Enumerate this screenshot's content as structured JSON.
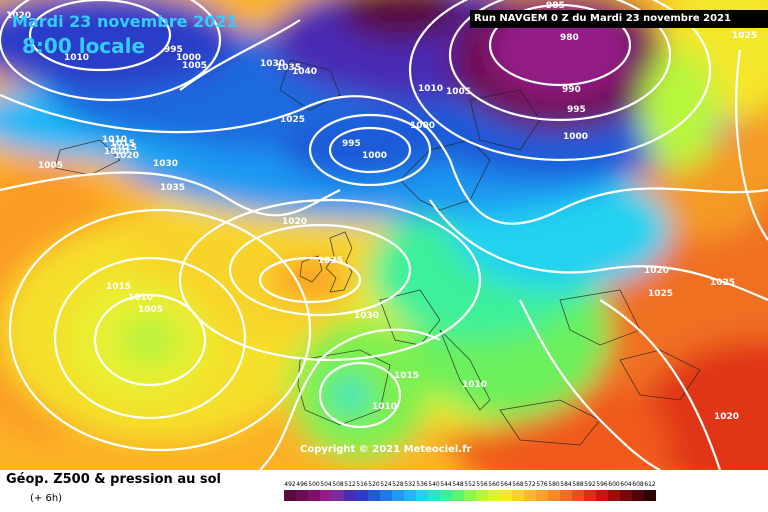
{
  "header": {
    "date": "Mardi 23 novembre 2021",
    "time": "8:00 locale",
    "run": "Run NAVGEM 0 Z du Mardi 23 novembre 2021"
  },
  "copyright": "Copyright © 2021 Meteociel.fr",
  "footer": {
    "title": "Géop. Z500 & pression au sol",
    "subtitle": "(+ 6h)"
  },
  "legend": {
    "values": [
      "492",
      "496",
      "500",
      "504",
      "508",
      "512",
      "516",
      "520",
      "524",
      "528",
      "532",
      "536",
      "540",
      "544",
      "548",
      "552",
      "556",
      "560",
      "564",
      "568",
      "572",
      "576",
      "580",
      "584",
      "588",
      "592",
      "596",
      "600",
      "604",
      "608",
      "612"
    ],
    "colors": [
      "#5a0a3c",
      "#6e0c50",
      "#82106a",
      "#961c8a",
      "#7a2ca0",
      "#4a2cb4",
      "#2c3cc8",
      "#1e5ad8",
      "#1e7ae8",
      "#1e9af2",
      "#1eb8f8",
      "#22d2f0",
      "#2ae4c8",
      "#3cf09a",
      "#5cf46c",
      "#8cf64c",
      "#b8f63c",
      "#dcf232",
      "#f4e62c",
      "#fcd028",
      "#fcb828",
      "#fca028",
      "#fc8828",
      "#f86c24",
      "#f04c1c",
      "#e02c14",
      "#c8140c",
      "#a00c08",
      "#78080c",
      "#50040a",
      "#300206"
    ]
  },
  "isobar_labels": [
    "1020",
    "1010",
    "995",
    "1000",
    "1005",
    "1030",
    "1035",
    "1040",
    "985",
    "980",
    "990",
    "995",
    "1000",
    "1010",
    "1005",
    "1025",
    "1025",
    "1000",
    "995",
    "1000",
    "1015",
    "1010",
    "1005",
    "1010",
    "1015",
    "1020",
    "1030",
    "1035",
    "1020",
    "1035",
    "1015",
    "1010",
    "1005",
    "1030",
    "1015",
    "1010",
    "1010",
    "1020",
    "1025",
    "1025",
    "1020"
  ]
}
